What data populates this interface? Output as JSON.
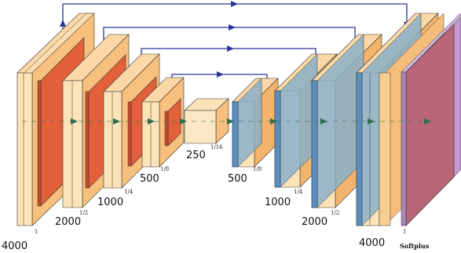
{
  "encoder_blocks": [
    {
      "channels": "4000",
      "scale": "1"
    },
    {
      "channels": "2000",
      "scale": "1/2"
    },
    {
      "channels": "1000",
      "scale": "1/4"
    },
    {
      "channels": "500",
      "scale": "1/8"
    }
  ],
  "bottleneck": {
    "channels": "250",
    "scale": "1/16"
  },
  "decoder_blocks": [
    {
      "channels": "500",
      "scale": "1/8"
    },
    {
      "channels": "1000",
      "scale": "1/4"
    },
    {
      "channels": "2000",
      "scale": "1/2"
    },
    {
      "channels": "4000",
      "scale": "1"
    }
  ],
  "output_activation": "Softplus",
  "colors": {
    "encoder_face": "#f9c98a",
    "encoder_light": "#fde3b8",
    "pool_face": "#e2603a",
    "decoder_stripe": "#5b8fc0",
    "output_face": "#b7606e",
    "output_side": "#c59ad0",
    "skip_arrow": "#2b3699",
    "flow_arrow": "#2f6e4f"
  }
}
